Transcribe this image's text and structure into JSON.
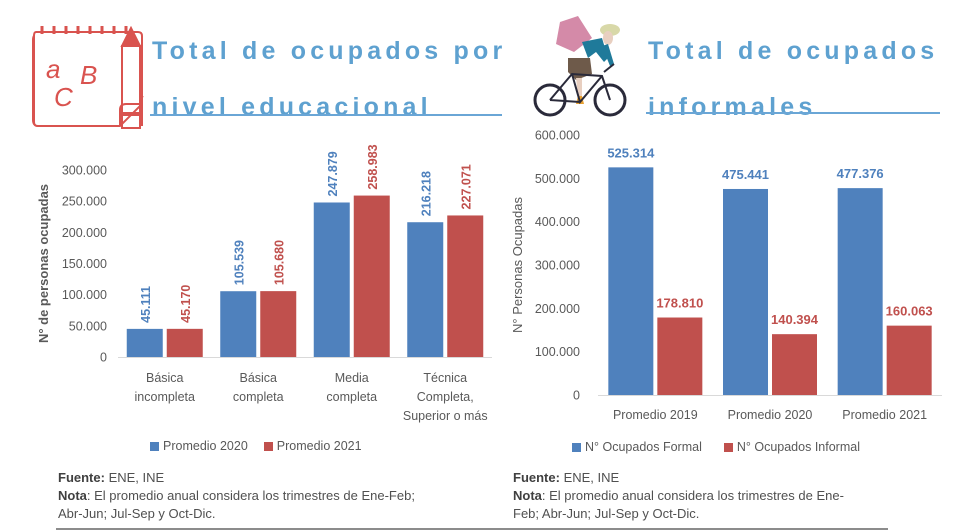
{
  "left_panel": {
    "title_line1": "Total de ocupados por",
    "title_line2": "nivel educacional",
    "icon": "abc-notepad-pencil-icon",
    "fuente_label": "Fuente:",
    "fuente_value": " ENE, INE",
    "nota_label": "Nota",
    "nota_line1": ": El promedio anual considera los trimestres de Ene-Feb;",
    "nota_line2": "Abr-Jun; Jul-Sep y Oct-Dic."
  },
  "right_panel": {
    "title_line1": "Total de ocupados",
    "title_line2": "informales",
    "icon": "cyclist-delivery-icon",
    "fuente_label": "Fuente:",
    "fuente_value": " ENE, INE",
    "nota_label": "Nota",
    "nota_line1": ": El promedio anual considera los trimestres de Ene-",
    "nota_line2": "Feb; Abr-Jun; Jul-Sep y Oct-Dic."
  },
  "colors": {
    "blue": "#4f81bd",
    "red": "#c0504d",
    "title": "#5ea1d0"
  },
  "chart_data": [
    {
      "type": "bar",
      "title": "Total de ocupados por nivel educacional",
      "xlabel": "",
      "ylabel": "N° de personas ocupadas",
      "ylim": [
        0,
        300000
      ],
      "yticks": [
        "0",
        "50.000",
        "100.000",
        "150.000",
        "200.000",
        "250.000",
        "300.000"
      ],
      "ytick_values": [
        0,
        50000,
        100000,
        150000,
        200000,
        250000,
        300000
      ],
      "categories": [
        [
          "Básica",
          "incompleta"
        ],
        [
          "Básica",
          "completa"
        ],
        [
          "Media",
          "completa"
        ],
        [
          "Técnica",
          "Completa,",
          "Superior o más"
        ]
      ],
      "series": [
        {
          "name": "Promedio 2020",
          "color": "#4f81bd",
          "values": [
            45111,
            105539,
            247879,
            216218
          ],
          "labels": [
            "45.111",
            "105.539",
            "247.879",
            "216.218"
          ]
        },
        {
          "name": "Promedio 2021",
          "color": "#c0504d",
          "values": [
            45170,
            105680,
            258983,
            227071
          ],
          "labels": [
            "45.170",
            "105.680",
            "258.983",
            "227.071"
          ]
        }
      ],
      "grid": false,
      "legend": "bottom"
    },
    {
      "type": "bar",
      "title": "Total de ocupados informales",
      "xlabel": "",
      "ylabel": "N° Personas Ocupadas",
      "ylim": [
        0,
        600000
      ],
      "yticks": [
        "0",
        "100.000",
        "200.000",
        "300.000",
        "400.000",
        "500.000",
        "600.000"
      ],
      "ytick_values": [
        0,
        100000,
        200000,
        300000,
        400000,
        500000,
        600000
      ],
      "categories": [
        [
          "Promedio 2019"
        ],
        [
          "Promedio 2020"
        ],
        [
          "Promedio 2021"
        ]
      ],
      "series": [
        {
          "name": "N° Ocupados Formal",
          "color": "#4f81bd",
          "values": [
            525314,
            475441,
            477376
          ],
          "labels": [
            "525.314",
            "475.441",
            "477.376"
          ]
        },
        {
          "name": "N° Ocupados Informal",
          "color": "#c0504d",
          "values": [
            178810,
            140394,
            160063
          ],
          "labels": [
            "178.810",
            "140.394",
            "160.063"
          ]
        }
      ],
      "grid": false,
      "legend": "bottom"
    }
  ]
}
